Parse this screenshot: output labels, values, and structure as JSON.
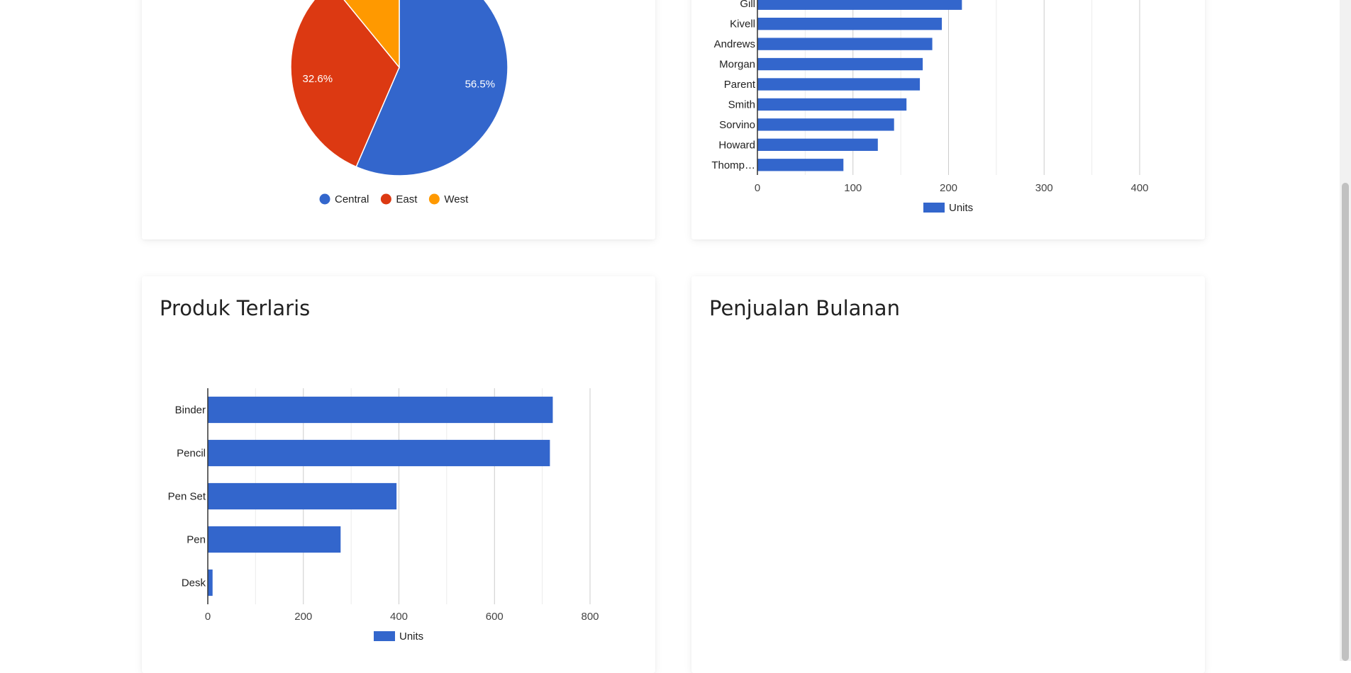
{
  "colors": {
    "blue": "#3366cc",
    "red": "#dc3912",
    "orange": "#ff9900"
  },
  "cards": {
    "products_title": "Produk Terlaris",
    "monthly_title": "Penjualan Bulanan"
  },
  "chart_data": [
    {
      "type": "pie",
      "title": "",
      "slices": [
        {
          "label": "Central",
          "value": 56.5,
          "display": "56.5%",
          "color": "#3366cc"
        },
        {
          "label": "East",
          "value": 32.6,
          "display": "32.6%",
          "color": "#dc3912"
        },
        {
          "label": "West",
          "value": 10.9,
          "display": "",
          "color": "#ff9900"
        }
      ],
      "legend": "bottom"
    },
    {
      "type": "bar",
      "orientation": "horizontal",
      "title": "",
      "categories": [
        "Gill",
        "Kivell",
        "Andrews",
        "Morgan",
        "Parent",
        "Smith",
        "Sorvino",
        "Howard",
        "Thomp…"
      ],
      "series": [
        {
          "name": "Units",
          "values": [
            214,
            193,
            183,
            173,
            170,
            156,
            143,
            126,
            90
          ],
          "color": "#3366cc"
        }
      ],
      "xlim": [
        0,
        400
      ],
      "xticks": [
        "0",
        "100",
        "200",
        "300",
        "400"
      ],
      "grid": true,
      "legend": "bottom"
    },
    {
      "type": "bar",
      "orientation": "horizontal",
      "title": "",
      "categories": [
        "Binder",
        "Pencil",
        "Pen Set",
        "Pen",
        "Desk"
      ],
      "series": [
        {
          "name": "Units",
          "values": [
            722,
            716,
            395,
            278,
            10
          ],
          "color": "#3366cc"
        }
      ],
      "xlim": [
        0,
        800
      ],
      "xticks": [
        "0",
        "200",
        "400",
        "600",
        "800"
      ],
      "grid": true,
      "legend": "bottom"
    }
  ]
}
